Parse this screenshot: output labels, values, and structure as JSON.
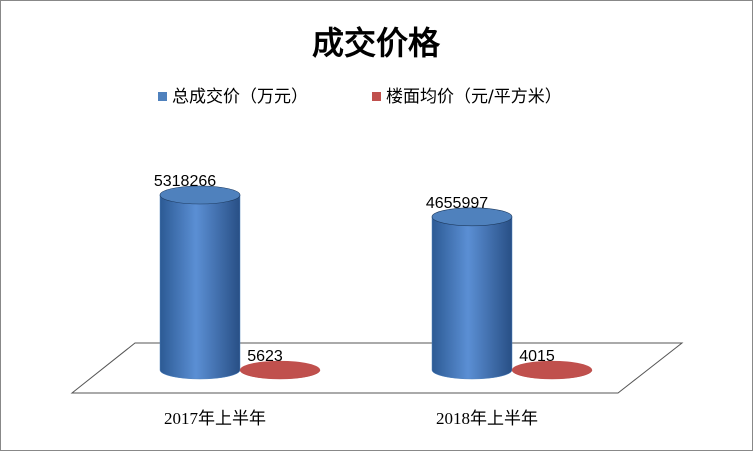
{
  "chart_data": {
    "type": "bar",
    "title": "成交价格",
    "categories": [
      "2017年上半年",
      "2018年上半年"
    ],
    "series": [
      {
        "name": "总成交价（万元）",
        "color": "#4f81bd",
        "values": [
          5318266,
          4655997
        ]
      },
      {
        "name": "楼面均价（元/平方米）",
        "color": "#c0504d",
        "values": [
          5623,
          4015
        ]
      }
    ]
  }
}
